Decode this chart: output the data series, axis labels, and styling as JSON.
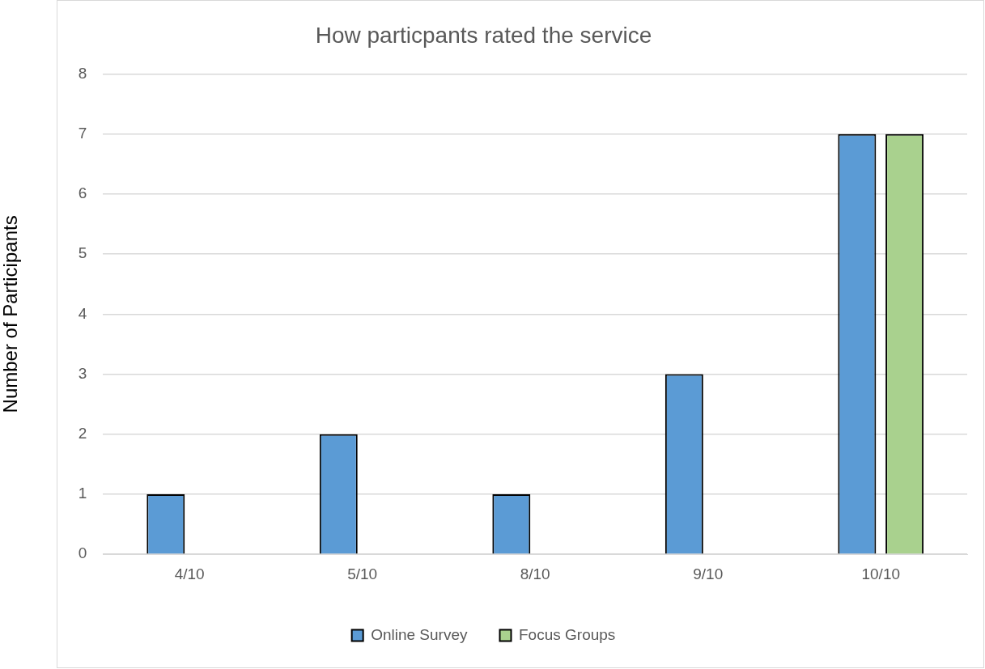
{
  "chart_data": {
    "type": "bar",
    "title": "How particpants rated the service",
    "ylabel": "Number of Participants",
    "categories": [
      "4/10",
      "5/10",
      "8/10",
      "9/10",
      "10/10"
    ],
    "series": [
      {
        "name": "Online Survey",
        "color": "#5b9bd5",
        "values": [
          1,
          2,
          1,
          3,
          7
        ]
      },
      {
        "name": "Focus Groups",
        "color": "#a9d18e",
        "values": [
          0,
          0,
          0,
          0,
          7
        ]
      }
    ],
    "ylim": [
      0,
      8
    ],
    "yticks": [
      0,
      1,
      2,
      3,
      4,
      5,
      6,
      7,
      8
    ],
    "grid": "y",
    "legend": "bottom"
  }
}
